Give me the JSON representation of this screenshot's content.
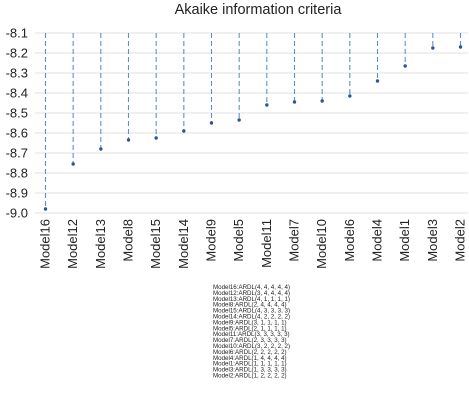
{
  "chart_data": {
    "type": "scatter",
    "title": "Akaike information criteria",
    "xlabel": "",
    "ylabel": "",
    "ylim": [
      -9.0,
      -8.1
    ],
    "yticks": [
      -8.1,
      -8.2,
      -8.3,
      -8.4,
      -8.5,
      -8.6,
      -8.7,
      -8.8,
      -8.9,
      -9.0
    ],
    "ytick_labels": [
      "-8.1",
      "-8.2",
      "-8.3",
      "-8.4",
      "-8.5",
      "-8.6",
      "-8.7",
      "-8.8",
      "-8.9",
      "-9.0"
    ],
    "grid": "horizontal",
    "stems": "dashed",
    "categories": [
      "Model16",
      "Model12",
      "Model13",
      "Model8",
      "Model15",
      "Model14",
      "Model9",
      "Model5",
      "Model11",
      "Model7",
      "Model10",
      "Model6",
      "Model4",
      "Model1",
      "Model3",
      "Model2"
    ],
    "values": [
      -8.98,
      -8.755,
      -8.68,
      -8.635,
      -8.625,
      -8.59,
      -8.55,
      -8.535,
      -8.46,
      -8.445,
      -8.44,
      -8.415,
      -8.34,
      -8.265,
      -8.175,
      -8.17
    ],
    "colors": {
      "marker": "#2f5597",
      "stem": "#5b8fd6",
      "grid": "#d9d9d9",
      "text": "#222222"
    },
    "legend": [
      "Model16:ARDL(4, 4, 4, 4, 4)",
      "Model12:ARDL(3, 4, 4, 4, 4)",
      "Model13:ARDL(4, 1, 1, 1, 1)",
      "Model8:ARDL(2, 4, 4, 4, 4)",
      "Model15:ARDL(4, 3, 3, 3, 3)",
      "Model14:ARDL(4, 2, 2, 2, 2)",
      "Model9:ARDL(3, 1, 1, 1, 1)",
      "Model5:ARDL(2, 1, 1, 1, 1)",
      "Model11:ARDL(3, 3, 3, 3, 3)",
      "Model7:ARDL(2, 3, 3, 3, 3)",
      "Model10:ARDL(3, 2, 2, 2, 2)",
      "Model6:ARDL(2, 2, 2, 2, 2)",
      "Model4:ARDL(1, 4, 4, 4, 4)",
      "Model1:ARDL(1, 1, 1, 1, 1)",
      "Model3:ARDL(1, 3, 3, 3, 3)",
      "Model2:ARDL(1, 2, 2, 2, 2)"
    ]
  }
}
